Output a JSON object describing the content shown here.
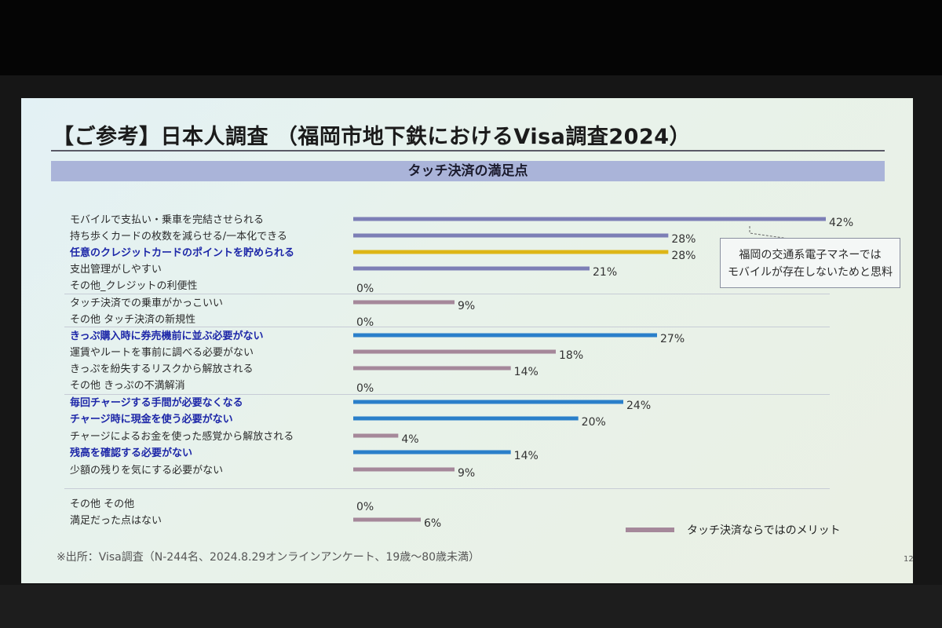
{
  "slide": {
    "title": "【ご参考】日本人調査 （福岡市地下鉄におけるVisa調査2024）",
    "section_title": "タッチ決済の満足点",
    "callout_lines": [
      "福岡の交通系電子マネーでは",
      "モバイルが存在しないためと思料"
    ],
    "legend_label": "タッチ決済ならではのメリット",
    "source": "※出所：Visa調査（N-244名、2024.8.29オンラインアンケート、19歳～80歳未満）",
    "page_number": "12"
  },
  "colors": {
    "purple": "#7d7fb6",
    "gold": "#ddb617",
    "blue": "#2a7fca",
    "mauve": "#a5889a",
    "highlight_text": "#1d27a8"
  },
  "chart_data": {
    "type": "bar",
    "orientation": "horizontal",
    "xlim": [
      0,
      42
    ],
    "categories": [
      {
        "label": "モバイルで支払い・乗車を完結させられる",
        "value": 42,
        "value_label": "42%",
        "color": "purple",
        "bold": false
      },
      {
        "label": "持ち歩くカードの枚数を減らせる/一本化できる",
        "value": 28,
        "value_label": "28%",
        "color": "purple",
        "bold": false
      },
      {
        "label": "任意のクレジットカードのポイントを貯められる",
        "value": 28,
        "value_label": "28%",
        "color": "gold",
        "bold": true
      },
      {
        "label": "支出管理がしやすい",
        "value": 21,
        "value_label": "21%",
        "color": "purple",
        "bold": false
      },
      {
        "label": "その他_クレジットの利便性",
        "value": 0,
        "value_label": "0%",
        "color": "purple",
        "bold": false
      },
      {
        "label": "タッチ決済での乗車がかっこいい",
        "value": 9,
        "value_label": "9%",
        "color": "mauve",
        "bold": false
      },
      {
        "label": "その他 タッチ決済の新規性",
        "value": 0,
        "value_label": "0%",
        "color": "mauve",
        "bold": false
      },
      {
        "label": "きっぷ購入時に券売機前に並ぶ必要がない",
        "value": 27,
        "value_label": "27%",
        "color": "blue",
        "bold": true
      },
      {
        "label": "運賃やルートを事前に調べる必要がない",
        "value": 18,
        "value_label": "18%",
        "color": "mauve",
        "bold": false
      },
      {
        "label": "きっぷを紛失するリスクから解放される",
        "value": 14,
        "value_label": "14%",
        "color": "mauve",
        "bold": false
      },
      {
        "label": "その他 きっぷの不満解消",
        "value": 0,
        "value_label": "0%",
        "color": "mauve",
        "bold": false
      },
      {
        "label": "毎回チャージする手間が必要なくなる",
        "value": 24,
        "value_label": "24%",
        "color": "blue",
        "bold": true
      },
      {
        "label": "チャージ時に現金を使う必要がない",
        "value": 20,
        "value_label": "20%",
        "color": "blue",
        "bold": true
      },
      {
        "label": "チャージによるお金を使った感覚から解放される",
        "value": 4,
        "value_label": "4%",
        "color": "mauve",
        "bold": false
      },
      {
        "label": "残高を確認する必要がない",
        "value": 14,
        "value_label": "14%",
        "color": "blue",
        "bold": true
      },
      {
        "label": "少額の残りを気にする必要がない",
        "value": 9,
        "value_label": "9%",
        "color": "mauve",
        "bold": false
      },
      {
        "label": "その他 その他",
        "value": 0,
        "value_label": "0%",
        "color": "mauve",
        "bold": false
      },
      {
        "label": "満足だった点はない",
        "value": 6,
        "value_label": "6%",
        "color": "mauve",
        "bold": false
      }
    ]
  }
}
